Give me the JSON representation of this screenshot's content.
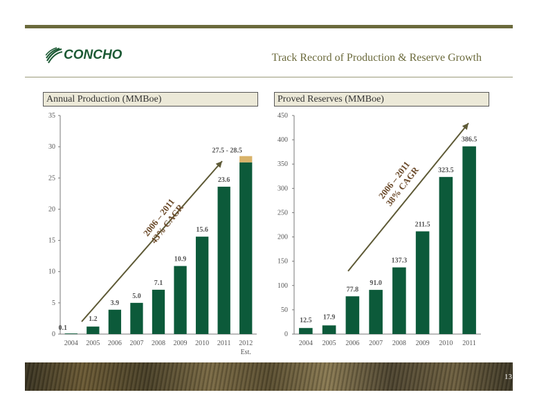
{
  "header": {
    "logo_text": "CONCHO",
    "title": "Track Record of Production & Reserve Growth"
  },
  "page_number": "13",
  "colors": {
    "bar": "#0c5a3a",
    "estimate": "#d9b36a",
    "arrow": "#5e5a36",
    "accent": "#6b6a3c"
  },
  "chart_data": [
    {
      "type": "bar",
      "title": "Annual Production (MMBoe)",
      "categories": [
        "2004",
        "2005",
        "2006",
        "2007",
        "2008",
        "2009",
        "2010",
        "2011",
        "2012"
      ],
      "category_sublabels": [
        "",
        "",
        "",
        "",
        "",
        "",
        "",
        "",
        "Est."
      ],
      "values": [
        0.1,
        1.2,
        3.9,
        5.0,
        7.1,
        10.9,
        15.6,
        23.6,
        27.5
      ],
      "estimate_range": {
        "category": "2012",
        "low": 27.5,
        "high": 28.5
      },
      "data_labels": [
        "0.1",
        "1.2",
        "3.9",
        "5.0",
        "7.1",
        "10.9",
        "15.6",
        "23.6",
        "27.5 - 28.5"
      ],
      "ylim": [
        0,
        35
      ],
      "yticks": [
        0,
        5,
        10,
        15,
        20,
        25,
        30,
        35
      ],
      "annotation": {
        "line1": "2006 – 2011",
        "line2": "43% CAGR"
      }
    },
    {
      "type": "bar",
      "title": "Proved Reserves (MMBoe)",
      "categories": [
        "2004",
        "2005",
        "2006",
        "2007",
        "2008",
        "2009",
        "2010",
        "2011"
      ],
      "values": [
        12.5,
        17.9,
        77.8,
        91.0,
        137.3,
        211.5,
        323.5,
        386.5
      ],
      "data_labels": [
        "12.5",
        "17.9",
        "77.8",
        "91.0",
        "137.3",
        "211.5",
        "323.5",
        "386.5"
      ],
      "ylim": [
        0,
        450
      ],
      "yticks": [
        0,
        50,
        100,
        150,
        200,
        250,
        300,
        350,
        400,
        450
      ],
      "annotation": {
        "line1": "2006 – 2011",
        "line2": "38% CAGR"
      }
    }
  ]
}
